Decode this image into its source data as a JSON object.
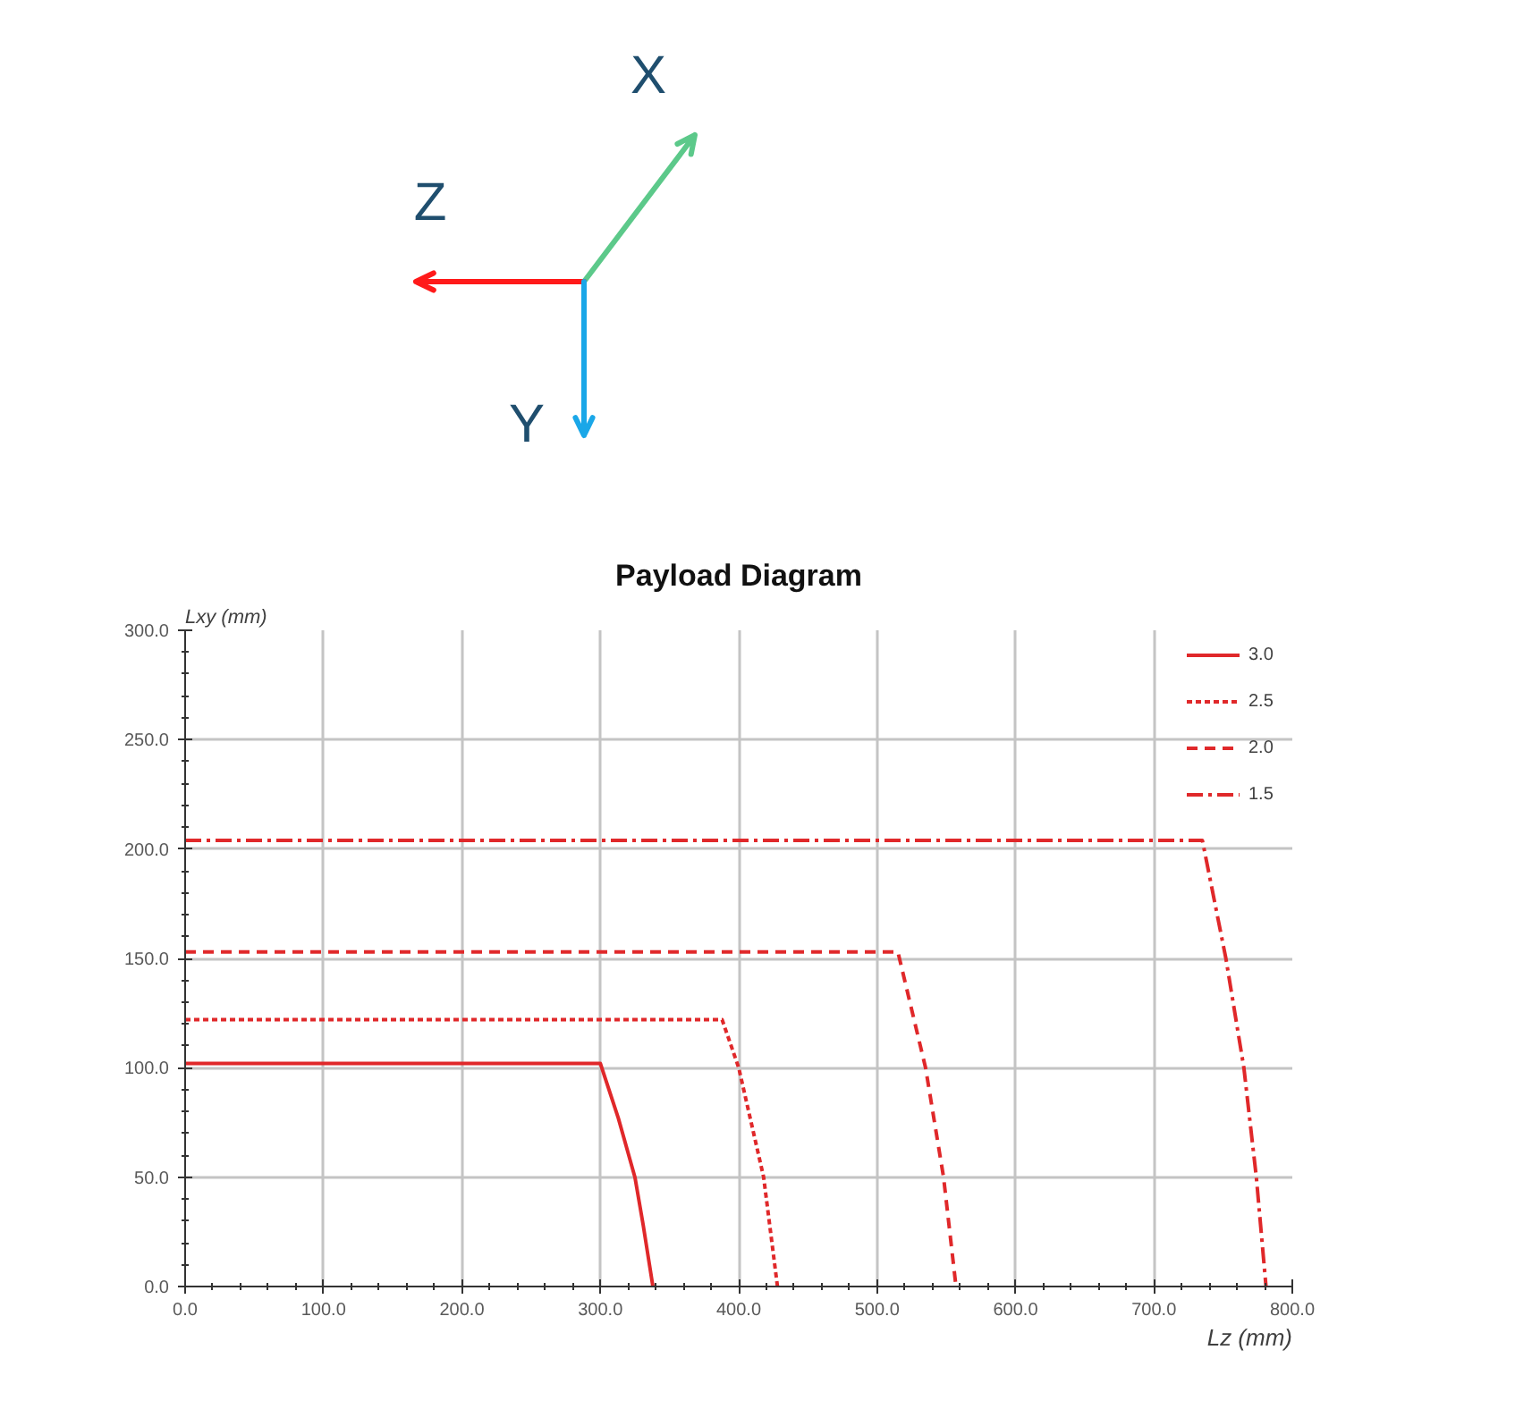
{
  "chart_data": [
    {
      "type": "other",
      "annotations": [
        "X",
        "Z",
        "Y"
      ],
      "colors": [
        "#5cc98a",
        "#ff1a1a",
        "#1aa7e8"
      ]
    },
    {
      "type": "line",
      "title": "Payload Diagram",
      "xlabel": "Lz (mm)",
      "ylabel": "Lxy (mm)",
      "legend": "top right",
      "grid": true,
      "xlim": [
        0,
        800
      ],
      "xticks": [
        {
          "value": 0,
          "label": "0.0"
        },
        {
          "value": 100,
          "label": "100.0"
        },
        {
          "value": 200,
          "label": "200.0"
        },
        {
          "value": 300,
          "label": "300.0"
        },
        {
          "value": 400,
          "label": "400.0"
        },
        {
          "value": 500,
          "label": "500.0"
        },
        {
          "value": 600,
          "label": "600.0"
        },
        {
          "value": 700,
          "label": "700.0"
        },
        {
          "value": 800,
          "label": "800.0"
        }
      ],
      "ylim": [
        0,
        300
      ],
      "yticks": [
        {
          "value": 0,
          "label": "0.0"
        },
        {
          "value": 50,
          "label": "50.0"
        },
        {
          "value": 100,
          "label": "100.0"
        },
        {
          "value": 150,
          "label": "150.0"
        },
        {
          "value": 200,
          "label": "200.0"
        },
        {
          "value": 250,
          "label": "250.0"
        },
        {
          "value": 300,
          "label": "300.0"
        }
      ],
      "series": [
        {
          "name": "3.0",
          "color": "#e0282a",
          "line_style": "solid",
          "x": [
            0,
            300,
            313,
            325,
            331,
            338
          ],
          "values": [
            102,
            102,
            77,
            50,
            28,
            0
          ]
        },
        {
          "name": "2.5",
          "color": "#e0282a",
          "line_style": "dotted",
          "x": [
            0,
            388,
            400,
            418,
            428
          ],
          "values": [
            122,
            122,
            100,
            50,
            0
          ]
        },
        {
          "name": "2.0",
          "color": "#e0282a",
          "line_style": "dashed",
          "x": [
            0,
            515,
            535,
            548,
            557
          ],
          "values": [
            153,
            153,
            100,
            50,
            0
          ]
        },
        {
          "name": "1.5",
          "color": "#e0282a",
          "line_style": "dashdot",
          "x": [
            0,
            735,
            752,
            765,
            774,
            781
          ],
          "values": [
            204,
            204,
            150,
            100,
            50,
            0
          ]
        }
      ]
    }
  ]
}
